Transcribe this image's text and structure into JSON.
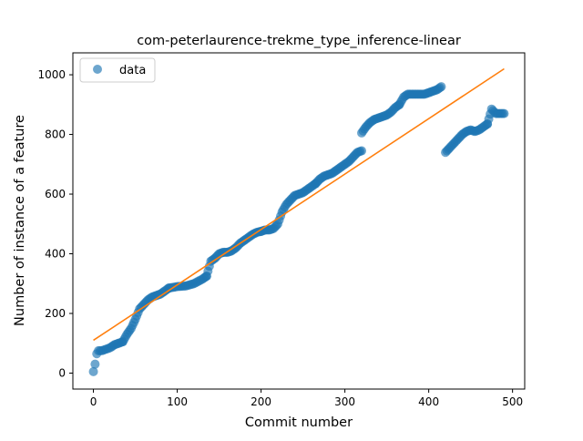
{
  "chart_data": {
    "type": "scatter",
    "title": "com-peterlaurence-trekme_type_inference-linear",
    "xlabel": "Commit number",
    "ylabel": "Number of instance of a feature",
    "xlim": [
      -24.5,
      514.5
    ],
    "ylim": [
      -53.5,
      1073.5
    ],
    "x_ticks": [
      0,
      100,
      200,
      300,
      400,
      500
    ],
    "y_ticks": [
      0,
      200,
      400,
      600,
      800,
      1000
    ],
    "grid": false,
    "legend": {
      "placement": "top-left",
      "entries": [
        "data"
      ]
    },
    "colors": {
      "data": "#1f77b4",
      "fit": "#ff7f0e"
    },
    "series": [
      {
        "name": "data",
        "kind": "scatter",
        "segments": [
          {
            "x": [
              0,
              2,
              4,
              6,
              10,
              20,
              25,
              30,
              35
            ],
            "y": [
              5,
              30,
              65,
              75,
              75,
              85,
              95,
              100,
              105
            ]
          },
          {
            "x": [
              35,
              40,
              45,
              50,
              55,
              60,
              65,
              70,
              75,
              80,
              85,
              90
            ],
            "y": [
              105,
              130,
              150,
              180,
              215,
              230,
              245,
              255,
              260,
              265,
              275,
              285
            ]
          },
          {
            "x": [
              90,
              100,
              110,
              120,
              130,
              135
            ],
            "y": [
              285,
              290,
              292,
              300,
              315,
              325
            ]
          },
          {
            "x": [
              135,
              140,
              145,
              150,
              155,
              160,
              165,
              170,
              175,
              180,
              185,
              190,
              195,
              200
            ],
            "y": [
              325,
              375,
              385,
              400,
              405,
              405,
              410,
              420,
              435,
              445,
              455,
              465,
              472,
              475
            ]
          },
          {
            "x": [
              200,
              205,
              210,
              215,
              220,
              225,
              230,
              235,
              240,
              245,
              250,
              255,
              260,
              265
            ],
            "y": [
              475,
              480,
              480,
              485,
              500,
              540,
              565,
              580,
              595,
              600,
              605,
              615,
              625,
              635
            ]
          },
          {
            "x": [
              265,
              270,
              275,
              280,
              285,
              290,
              295,
              300,
              305,
              310,
              315,
              320
            ],
            "y": [
              635,
              650,
              660,
              665,
              670,
              680,
              690,
              700,
              710,
              725,
              740,
              745
            ]
          },
          {
            "x": [
              320,
              325,
              330,
              335,
              340,
              345,
              350,
              355,
              360,
              365
            ],
            "y": [
              805,
              825,
              840,
              850,
              855,
              860,
              865,
              875,
              890,
              900
            ]
          },
          {
            "x": [
              365,
              370,
              375,
              380,
              385,
              390,
              395,
              400,
              405,
              410,
              415
            ],
            "y": [
              900,
              925,
              935,
              935,
              935,
              935,
              935,
              940,
              945,
              950,
              960
            ]
          },
          {
            "x": [
              420,
              425,
              430,
              435,
              440,
              445,
              450,
              455,
              460,
              465,
              470
            ],
            "y": [
              740,
              755,
              770,
              785,
              800,
              810,
              815,
              810,
              815,
              825,
              835
            ]
          },
          {
            "x": [
              470,
              475,
              480,
              485,
              490
            ],
            "y": [
              835,
              885,
              870,
              870,
              870
            ]
          }
        ]
      },
      {
        "name": "fit",
        "kind": "line",
        "x": [
          0,
          490
        ],
        "y": [
          110,
          1020
        ]
      }
    ]
  }
}
